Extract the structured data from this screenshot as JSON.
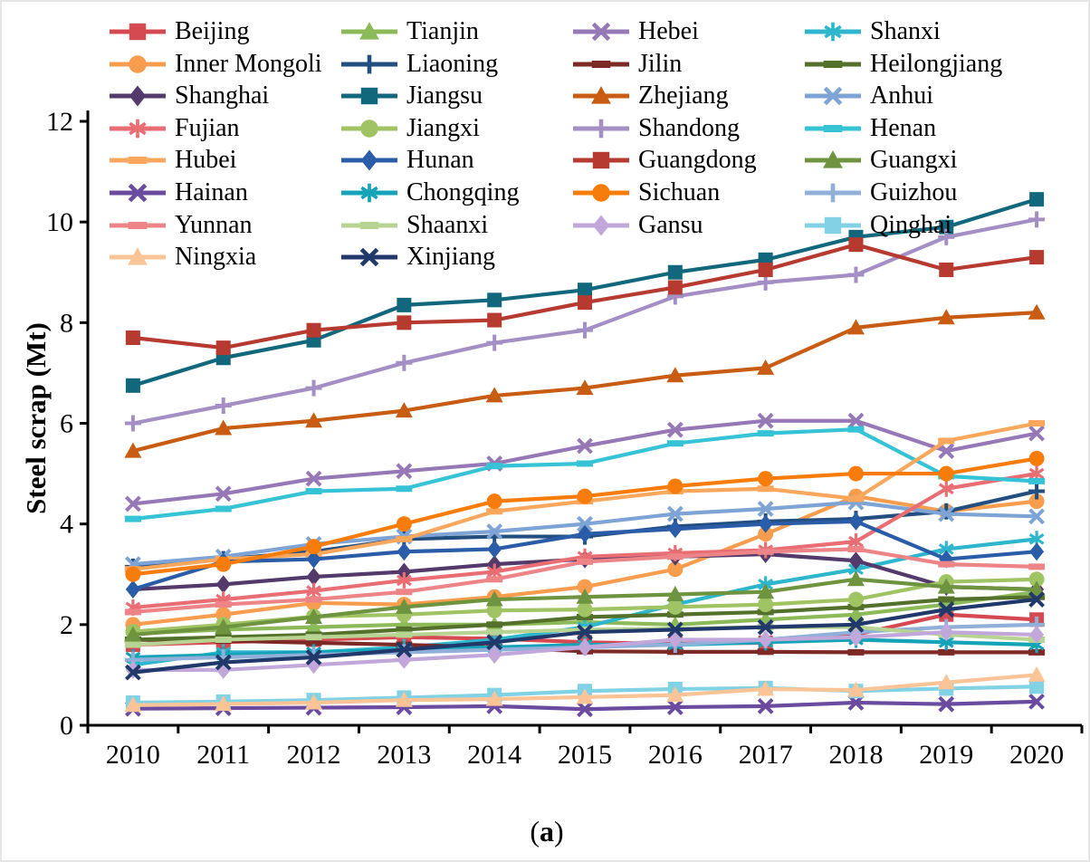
{
  "figure": {
    "caption_open": "(",
    "caption_letter": "a",
    "caption_close": ")",
    "y_axis_label": "Steel scrap (Mt)"
  },
  "chart_data": {
    "type": "line",
    "title": "",
    "xlabel": "",
    "ylabel": "Steel scrap (Mt)",
    "x": [
      2010,
      2011,
      2012,
      2013,
      2014,
      2015,
      2016,
      2017,
      2018,
      2019,
      2020
    ],
    "ylim": [
      0,
      12
    ],
    "yticks": [
      0,
      2,
      4,
      6,
      8,
      10,
      12
    ],
    "grid": false,
    "legend_position": "top-inside",
    "legend_columns": 4,
    "series": [
      {
        "name": "Beijing",
        "color": "#d44a50",
        "marker": "square",
        "values": [
          1.6,
          1.65,
          1.7,
          1.75,
          1.72,
          1.65,
          1.62,
          1.64,
          1.8,
          2.2,
          2.1
        ]
      },
      {
        "name": "Tianjin",
        "color": "#8cba58",
        "marker": "triangle",
        "values": [
          1.82,
          1.9,
          1.95,
          2.0,
          2.0,
          2.05,
          2.0,
          2.1,
          2.2,
          2.4,
          2.65
        ]
      },
      {
        "name": "Hebei",
        "color": "#9678b6",
        "marker": "x",
        "values": [
          4.4,
          4.6,
          4.9,
          5.05,
          5.2,
          5.55,
          5.87,
          6.05,
          6.05,
          5.45,
          5.8
        ]
      },
      {
        "name": "Shanxi",
        "color": "#2eb6cc",
        "marker": "asterisk",
        "values": [
          1.2,
          1.45,
          1.45,
          1.55,
          1.7,
          1.95,
          2.4,
          2.8,
          3.1,
          3.5,
          3.7
        ]
      },
      {
        "name": "Inner Mongoli",
        "color": "#f79d4d",
        "marker": "circle",
        "values": [
          2.0,
          2.2,
          2.43,
          2.4,
          2.55,
          2.75,
          3.1,
          3.8,
          4.55,
          4.25,
          4.45
        ]
      },
      {
        "name": "Liaoning",
        "color": "#234f80",
        "marker": "plus",
        "values": [
          3.15,
          3.3,
          3.45,
          3.7,
          3.75,
          3.75,
          3.95,
          4.05,
          4.1,
          4.25,
          4.65
        ]
      },
      {
        "name": "Jilin",
        "color": "#7d2a27",
        "marker": "dash",
        "values": [
          1.7,
          1.68,
          1.64,
          1.6,
          1.55,
          1.47,
          1.46,
          1.46,
          1.45,
          1.45,
          1.45
        ]
      },
      {
        "name": "Heilongjiang",
        "color": "#54712c",
        "marker": "dash",
        "values": [
          1.7,
          1.75,
          1.8,
          1.9,
          2.0,
          2.15,
          2.2,
          2.25,
          2.35,
          2.5,
          2.55
        ]
      },
      {
        "name": "Shanghai",
        "color": "#533a6b",
        "marker": "diamond",
        "values": [
          2.7,
          2.8,
          2.95,
          3.05,
          3.2,
          3.3,
          3.35,
          3.4,
          3.27,
          2.75,
          2.7
        ]
      },
      {
        "name": "Jiangsu",
        "color": "#11687c",
        "marker": "square",
        "values": [
          6.75,
          7.3,
          7.65,
          8.35,
          8.45,
          8.65,
          9.0,
          9.25,
          9.7,
          9.9,
          10.45
        ]
      },
      {
        "name": "Zhejiang",
        "color": "#c85c12",
        "marker": "triangle",
        "values": [
          5.45,
          5.9,
          6.05,
          6.25,
          6.55,
          6.7,
          6.95,
          7.1,
          7.9,
          8.1,
          8.2
        ]
      },
      {
        "name": "Anhui",
        "color": "#7ea4d6",
        "marker": "x",
        "values": [
          3.2,
          3.35,
          3.6,
          3.75,
          3.85,
          4.0,
          4.2,
          4.3,
          4.43,
          4.2,
          4.15
        ]
      },
      {
        "name": "Fujian",
        "color": "#e96e74",
        "marker": "asterisk",
        "values": [
          2.34,
          2.5,
          2.67,
          2.88,
          3.05,
          3.35,
          3.42,
          3.48,
          3.65,
          4.7,
          5.0
        ]
      },
      {
        "name": "Jiangxi",
        "color": "#a0c464",
        "marker": "circle",
        "values": [
          1.86,
          2.0,
          2.16,
          2.2,
          2.28,
          2.3,
          2.35,
          2.4,
          2.5,
          2.85,
          2.9
        ]
      },
      {
        "name": "Shandong",
        "color": "#a48fc5",
        "marker": "plus",
        "values": [
          6.0,
          6.35,
          6.7,
          7.2,
          7.6,
          7.85,
          8.52,
          8.8,
          8.95,
          9.7,
          10.05
        ]
      },
      {
        "name": "Henan",
        "color": "#36c3d5",
        "marker": "dash",
        "values": [
          4.1,
          4.3,
          4.65,
          4.7,
          5.15,
          5.2,
          5.6,
          5.8,
          5.88,
          4.95,
          4.85
        ]
      },
      {
        "name": "Hubei",
        "color": "#f9a75c",
        "marker": "dash",
        "values": [
          3.1,
          3.3,
          3.4,
          3.7,
          4.25,
          4.45,
          4.65,
          4.7,
          4.5,
          5.65,
          6.0
        ]
      },
      {
        "name": "Hunan",
        "color": "#2a5ca8",
        "marker": "diamond",
        "values": [
          2.7,
          3.25,
          3.3,
          3.45,
          3.5,
          3.8,
          3.9,
          4.0,
          4.05,
          3.3,
          3.45
        ]
      },
      {
        "name": "Guangdong",
        "color": "#b73a31",
        "marker": "square",
        "values": [
          7.7,
          7.5,
          7.85,
          8.0,
          8.05,
          8.4,
          8.7,
          9.05,
          9.55,
          9.05,
          9.3
        ]
      },
      {
        "name": "Guangxi",
        "color": "#6e9440",
        "marker": "triangle",
        "values": [
          1.8,
          1.95,
          2.15,
          2.35,
          2.5,
          2.55,
          2.6,
          2.65,
          2.9,
          2.75,
          2.7
        ]
      },
      {
        "name": "Hainan",
        "color": "#6a4b9f",
        "marker": "x",
        "values": [
          0.33,
          0.34,
          0.35,
          0.36,
          0.38,
          0.32,
          0.36,
          0.38,
          0.45,
          0.42,
          0.47
        ]
      },
      {
        "name": "Chongqing",
        "color": "#15a3b8",
        "marker": "asterisk",
        "values": [
          1.35,
          1.4,
          1.45,
          1.5,
          1.55,
          1.6,
          1.6,
          1.65,
          1.7,
          1.65,
          1.6
        ]
      },
      {
        "name": "Sichuan",
        "color": "#f87c0a",
        "marker": "circle",
        "values": [
          3.0,
          3.2,
          3.55,
          4.0,
          4.45,
          4.55,
          4.75,
          4.9,
          5.0,
          5.0,
          5.3
        ]
      },
      {
        "name": "Guizhou",
        "color": "#90b0d9",
        "marker": "plus",
        "values": [
          1.3,
          1.35,
          1.4,
          1.45,
          1.5,
          1.55,
          1.6,
          1.7,
          1.85,
          1.95,
          2.0
        ]
      },
      {
        "name": "Yunnan",
        "color": "#ed8487",
        "marker": "dash",
        "values": [
          2.25,
          2.4,
          2.5,
          2.65,
          2.9,
          3.25,
          3.35,
          3.45,
          3.5,
          3.2,
          3.15
        ]
      },
      {
        "name": "Shaanxi",
        "color": "#b7d493",
        "marker": "dash",
        "values": [
          1.6,
          1.7,
          1.75,
          1.8,
          1.85,
          1.9,
          1.92,
          1.95,
          1.95,
          1.8,
          1.7
        ]
      },
      {
        "name": "Gansu",
        "color": "#c2a7da",
        "marker": "diamond",
        "values": [
          1.1,
          1.1,
          1.2,
          1.3,
          1.4,
          1.55,
          1.7,
          1.7,
          1.75,
          1.85,
          1.8
        ]
      },
      {
        "name": "Qinghai",
        "color": "#80d2e4",
        "marker": "square",
        "values": [
          0.45,
          0.47,
          0.5,
          0.55,
          0.6,
          0.68,
          0.72,
          0.74,
          0.68,
          0.73,
          0.77
        ]
      },
      {
        "name": "Ningxia",
        "color": "#fac497",
        "marker": "triangle",
        "values": [
          0.4,
          0.42,
          0.45,
          0.5,
          0.52,
          0.56,
          0.6,
          0.72,
          0.7,
          0.85,
          1.0
        ]
      },
      {
        "name": "Xinjiang",
        "color": "#20386a",
        "marker": "x",
        "values": [
          1.05,
          1.25,
          1.35,
          1.5,
          1.65,
          1.85,
          1.9,
          1.95,
          2.0,
          2.3,
          2.5
        ]
      }
    ]
  }
}
